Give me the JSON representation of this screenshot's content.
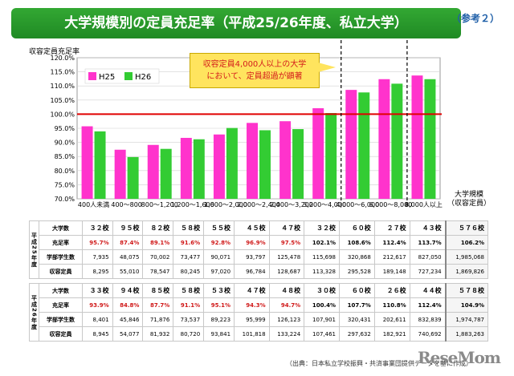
{
  "header": {
    "title": "大学規模別の定員充足率（平成25/26年度、私立大学）",
    "ref": "（参考２）"
  },
  "callout": {
    "line1": "収容定員4,000人以上の大学",
    "line2": "において、定員超過が顕著"
  },
  "chart_data": {
    "type": "bar",
    "ylabel": "収容定員充足率",
    "xlabel": "大学規模（収容定員）",
    "xlabel_line1": "大学規模",
    "xlabel_line2": "（収容定員）",
    "ylim": [
      70.0,
      120.0
    ],
    "yticks": [
      "70.0%",
      "75.0%",
      "80.0%",
      "85.0%",
      "90.0%",
      "95.0%",
      "100.0%",
      "105.0%",
      "110.0%",
      "115.0%",
      "120.0%"
    ],
    "reference_line": 100.0,
    "categories": [
      "400人未満",
      "400～800",
      "800～1,200",
      "1,200～1,600",
      "1,600～2,000",
      "2,000～2,400",
      "2,400～3,200",
      "3,200～4,000",
      "4,000～6,000",
      "6,000～8,000",
      "8,000人以上"
    ],
    "series": [
      {
        "name": "H25",
        "color": "#ff33cc",
        "values": [
          95.7,
          87.4,
          89.1,
          91.6,
          92.8,
          96.9,
          97.5,
          102.1,
          108.6,
          112.4,
          113.7
        ]
      },
      {
        "name": "H26",
        "color": "#33cc33",
        "values": [
          93.9,
          84.8,
          87.7,
          91.1,
          95.1,
          94.3,
          94.7,
          100.4,
          107.7,
          110.8,
          112.4
        ]
      }
    ],
    "legend": "top-left",
    "dashed_dividers_after": [
      7,
      10
    ]
  },
  "table": {
    "groups": [
      {
        "label": "平成25年度",
        "rows": [
          {
            "label": "大学数",
            "style": "count",
            "values": [
              "３２校",
              "９５校",
              "８２校",
              "５８校",
              "５５校",
              "４５校",
              "４７校",
              "３２校",
              "６０校",
              "２７校",
              "４３校"
            ],
            "total": "５７６校"
          },
          {
            "label": "充足率",
            "style": "rate",
            "values": [
              "95.7%",
              "87.4%",
              "89.1%",
              "91.6%",
              "92.8%",
              "96.9%",
              "97.5%",
              "102.1%",
              "108.6%",
              "112.4%",
              "113.7%"
            ],
            "total": "106.2%"
          },
          {
            "label": "学部学生数",
            "style": "plain",
            "values": [
              "7,935",
              "48,075",
              "70,002",
              "73,477",
              "90,071",
              "93,797",
              "125,478",
              "115,698",
              "320,868",
              "212,617",
              "827,050"
            ],
            "total": "1,985,068"
          },
          {
            "label": "収容定員",
            "style": "plain",
            "values": [
              "8,295",
              "55,010",
              "78,547",
              "80,245",
              "97,020",
              "96,784",
              "128,687",
              "113,328",
              "295,528",
              "189,148",
              "727,234"
            ],
            "total": "1,869,826"
          }
        ]
      },
      {
        "label": "平成26年度",
        "rows": [
          {
            "label": "大学数",
            "style": "count",
            "values": [
              "３３校",
              "９４校",
              "８５校",
              "５８校",
              "５３校",
              "４７校",
              "４８校",
              "３０校",
              "６０校",
              "２６校",
              "４４校"
            ],
            "total": "５７８校"
          },
          {
            "label": "充足率",
            "style": "rate",
            "values": [
              "93.9%",
              "84.8%",
              "87.7%",
              "91.1%",
              "95.1%",
              "94.3%",
              "94.7%",
              "100.4%",
              "107.7%",
              "110.8%",
              "112.4%"
            ],
            "total": "104.9%"
          },
          {
            "label": "学部学生数",
            "style": "plain",
            "values": [
              "8,401",
              "45,846",
              "71,876",
              "73,537",
              "89,223",
              "95,999",
              "126,123",
              "107,901",
              "320,431",
              "202,611",
              "832,839"
            ],
            "total": "1,974,787"
          },
          {
            "label": "収容定員",
            "style": "plain",
            "values": [
              "8,945",
              "54,077",
              "81,932",
              "80,720",
              "93,841",
              "101,818",
              "133,224",
              "107,461",
              "297,632",
              "182,921",
              "740,692"
            ],
            "total": "1,883,263"
          }
        ]
      }
    ]
  },
  "footer": {
    "source": "（出典：日本私立学校振興・共済事業団提供データを基に作成）",
    "logo": "ReseMom"
  }
}
